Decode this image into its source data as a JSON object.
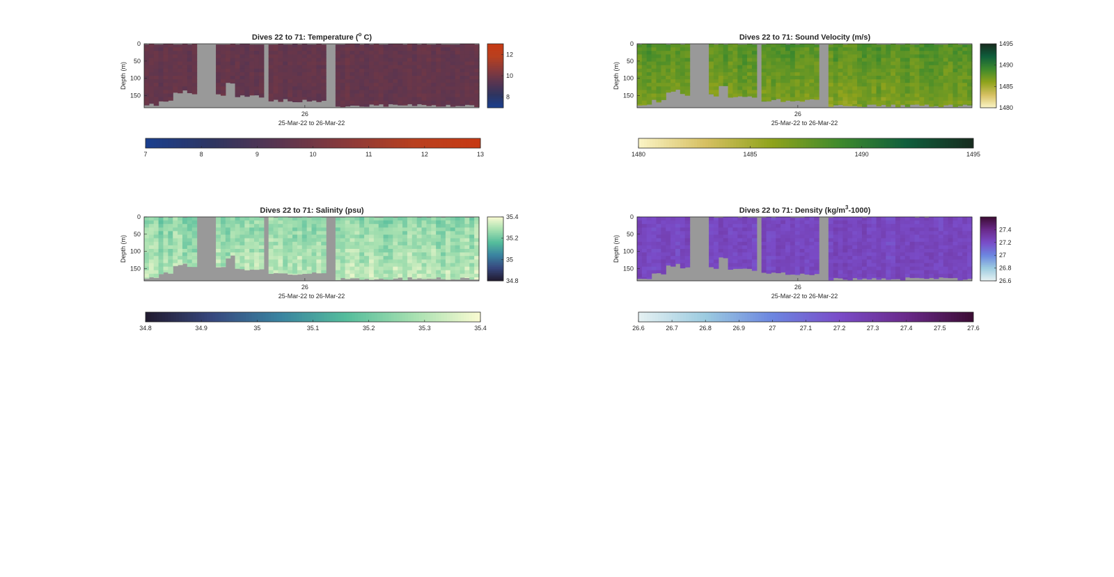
{
  "figure": {
    "panels": [
      {
        "id": "temperature",
        "title": "Dives 22 to 71: Temperature (o C)",
        "title_parts": [
          "Dives 22 to 71: Temperature (",
          "o",
          " C)"
        ],
        "xtick_label": "26",
        "xlabel": "25-Mar-22 to 26-Mar-22",
        "ylabel": "Depth (m)",
        "yticks": [
          "0",
          "50",
          "100",
          "150"
        ],
        "cbar_side_ticks": [
          "12",
          "10",
          "8"
        ],
        "cbar_bottom_ticks": [
          "7",
          "8",
          "9",
          "10",
          "11",
          "12",
          "13"
        ]
      },
      {
        "id": "sound-velocity",
        "title": "Dives 22 to 71: Sound Velocity (m/s)",
        "title_parts": [
          "Dives 22 to 71: Sound Velocity (m/s)",
          "",
          ""
        ],
        "xtick_label": "26",
        "xlabel": "25-Mar-22 to 26-Mar-22",
        "ylabel": "Depth (m)",
        "yticks": [
          "0",
          "50",
          "100",
          "150"
        ],
        "cbar_side_ticks": [
          "1495",
          "1490",
          "1485",
          "1480"
        ],
        "cbar_bottom_ticks": [
          "1480",
          "1485",
          "1490",
          "1495"
        ]
      },
      {
        "id": "salinity",
        "title": "Dives 22 to 71: Salinity (psu)",
        "title_parts": [
          "Dives 22 to 71: Salinity (psu)",
          "",
          ""
        ],
        "xtick_label": "26",
        "xlabel": "25-Mar-22 to 26-Mar-22",
        "ylabel": "Depth (m)",
        "yticks": [
          "0",
          "50",
          "100",
          "150"
        ],
        "cbar_side_ticks": [
          "35.4",
          "35.2",
          "35",
          "34.8"
        ],
        "cbar_bottom_ticks": [
          "34.8",
          "34.9",
          "35",
          "35.1",
          "35.2",
          "35.3",
          "35.4"
        ]
      },
      {
        "id": "density",
        "title": "Dives 22 to 71: Density (kg/m3-1000)",
        "title_parts": [
          "Dives 22 to 71: Density (kg/m",
          "3",
          "-1000)"
        ],
        "xtick_label": "26",
        "xlabel": "25-Mar-22 to 26-Mar-22",
        "ylabel": "Depth (m)",
        "yticks": [
          "0",
          "50",
          "100",
          "150"
        ],
        "cbar_side_ticks": [
          "27.4",
          "27.2",
          "27",
          "26.8",
          "26.6"
        ],
        "cbar_bottom_ticks": [
          "26.6",
          "26.7",
          "26.8",
          "26.9",
          "27",
          "27.1",
          "27.2",
          "27.3",
          "27.4",
          "27.5",
          "27.6"
        ]
      }
    ]
  },
  "chart_data": [
    {
      "type": "heatmap",
      "title": "Dives 22 to 71: Temperature (o C)",
      "xlabel": "25-Mar-22 to 26-Mar-22",
      "ylabel": "Depth (m)",
      "ylim": [
        0,
        185
      ],
      "y_reversed": true,
      "x_ticks": [
        "26"
      ],
      "colorbar": {
        "min": 7,
        "max": 13,
        "ticks": [
          7,
          8,
          9,
          10,
          11,
          12,
          13
        ]
      },
      "colors": [
        "#1a3f8f",
        "#2e3560",
        "#5a3550",
        "#8a3a3a",
        "#b8401f",
        "#c73a14"
      ],
      "no_data_color": "#999999",
      "typical_value": 9.6,
      "value_range": [
        9.3,
        10.0
      ]
    },
    {
      "type": "heatmap",
      "title": "Dives 22 to 71: Sound Velocity (m/s)",
      "xlabel": "25-Mar-22 to 26-Mar-22",
      "ylabel": "Depth (m)",
      "ylim": [
        0,
        185
      ],
      "y_reversed": true,
      "x_ticks": [
        "26"
      ],
      "colorbar": {
        "min": 1480,
        "max": 1495,
        "ticks": [
          1480,
          1485,
          1490,
          1495
        ]
      },
      "colors": [
        "#fbf4c6",
        "#d6c062",
        "#8fa31c",
        "#3f8a2c",
        "#0f5e3c",
        "#172b1e"
      ],
      "no_data_color": "#999999",
      "typical_value": 1488,
      "value_range": [
        1486,
        1489
      ]
    },
    {
      "type": "heatmap",
      "title": "Dives 22 to 71: Salinity (psu)",
      "xlabel": "25-Mar-22 to 26-Mar-22",
      "ylabel": "Depth (m)",
      "ylim": [
        0,
        185
      ],
      "y_reversed": true,
      "x_ticks": [
        "26"
      ],
      "colorbar": {
        "min": 34.8,
        "max": 35.4,
        "ticks": [
          34.8,
          34.9,
          35.0,
          35.1,
          35.2,
          35.3,
          35.4
        ]
      },
      "colors": [
        "#211a2e",
        "#37487e",
        "#3a83a0",
        "#55bd9c",
        "#a6e0b0",
        "#fafbd2"
      ],
      "no_data_color": "#999999",
      "typical_value": 35.28,
      "value_range": [
        35.18,
        35.36
      ]
    },
    {
      "type": "heatmap",
      "title": "Dives 22 to 71: Density (kg/m3-1000)",
      "xlabel": "25-Mar-22 to 26-Mar-22",
      "ylabel": "Depth (m)",
      "ylim": [
        0,
        185
      ],
      "y_reversed": true,
      "x_ticks": [
        "26"
      ],
      "colorbar": {
        "min": 26.6,
        "max": 27.6,
        "ticks": [
          26.6,
          26.7,
          26.8,
          26.9,
          27.0,
          27.1,
          27.2,
          27.3,
          27.4,
          27.5,
          27.6
        ]
      },
      "colors": [
        "#e6f1f2",
        "#9ccbe0",
        "#6c86e0",
        "#7a4cc8",
        "#6a2a8a",
        "#3b0c33"
      ],
      "no_data_color": "#999999",
      "typical_value": 27.22,
      "value_range": [
        27.15,
        27.3
      ]
    }
  ]
}
